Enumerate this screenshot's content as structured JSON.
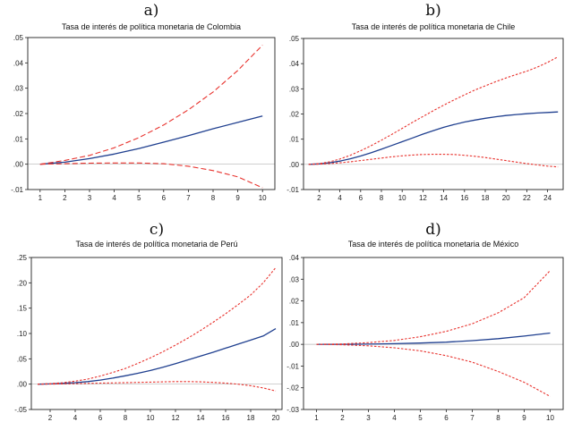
{
  "chart_data": [
    {
      "type": "line",
      "panel_label": "a)",
      "title": "Tasa de interés de política monetaria de Colombia",
      "xlim": [
        0.5,
        10.5
      ],
      "ylim": [
        -0.01,
        0.05
      ],
      "x_ticks": [
        1,
        2,
        3,
        4,
        5,
        6,
        7,
        8,
        9,
        10
      ],
      "y_ticks": [
        -0.01,
        0.0,
        0.01,
        0.02,
        0.03,
        0.04,
        0.05
      ],
      "y_tick_labels": [
        "-.01",
        ".00",
        ".01",
        ".02",
        ".03",
        ".04",
        ".05"
      ],
      "x_points": [
        1,
        2,
        3,
        4,
        5,
        6,
        7,
        8,
        9,
        10
      ],
      "series": [
        {
          "style": "solid",
          "color": "#1f3f8f",
          "values": [
            0.0,
            0.0008,
            0.0022,
            0.004,
            0.0062,
            0.0087,
            0.0113,
            0.014,
            0.0165,
            0.019
          ]
        },
        {
          "style": "dashed",
          "color": "#e8322d",
          "values": [
            0.0,
            0.0015,
            0.0035,
            0.0065,
            0.0105,
            0.0155,
            0.0215,
            0.0285,
            0.037,
            0.047
          ]
        },
        {
          "style": "dashed",
          "color": "#e8322d",
          "values": [
            0.0,
            0.0002,
            0.0004,
            0.0005,
            0.0005,
            0.0002,
            -0.0008,
            -0.0025,
            -0.005,
            -0.0093
          ]
        }
      ]
    },
    {
      "type": "line",
      "panel_label": "b)",
      "title": "Tasa de interés de política monetaria de Chile",
      "xlim": [
        0.5,
        25.5
      ],
      "ylim": [
        -0.01,
        0.05
      ],
      "x_ticks": [
        2,
        4,
        6,
        8,
        10,
        12,
        14,
        16,
        18,
        20,
        22,
        24
      ],
      "y_ticks": [
        -0.01,
        0.0,
        0.01,
        0.02,
        0.03,
        0.04,
        0.05
      ],
      "y_tick_labels": [
        "-.01",
        ".00",
        ".01",
        ".02",
        ".03",
        ".04",
        ".05"
      ],
      "x_points": [
        1,
        2,
        3,
        4,
        5,
        6,
        7,
        8,
        9,
        10,
        11,
        12,
        13,
        14,
        15,
        16,
        17,
        18,
        19,
        20,
        21,
        22,
        23,
        24,
        25
      ],
      "series": [
        {
          "style": "solid",
          "color": "#1f3f8f",
          "values": [
            0.0,
            0.0002,
            0.0006,
            0.0013,
            0.0022,
            0.0033,
            0.0046,
            0.006,
            0.0075,
            0.009,
            0.0105,
            0.012,
            0.0134,
            0.0147,
            0.0158,
            0.0168,
            0.0176,
            0.0183,
            0.0189,
            0.0194,
            0.0198,
            0.0201,
            0.0204,
            0.0206,
            0.0208
          ]
        },
        {
          "style": "dotted",
          "color": "#e8322d",
          "values": [
            0.0,
            0.0003,
            0.001,
            0.0021,
            0.0036,
            0.0054,
            0.0074,
            0.0096,
            0.0119,
            0.0143,
            0.0167,
            0.019,
            0.0213,
            0.0235,
            0.0256,
            0.0276,
            0.0295,
            0.0312,
            0.0328,
            0.0343,
            0.0357,
            0.037,
            0.0386,
            0.0405,
            0.0427
          ]
        },
        {
          "style": "dotted",
          "color": "#e8322d",
          "values": [
            0.0,
            0.0001,
            0.0003,
            0.0006,
            0.001,
            0.0015,
            0.002,
            0.0025,
            0.003,
            0.0034,
            0.0037,
            0.0039,
            0.004,
            0.004,
            0.0039,
            0.0036,
            0.0032,
            0.0027,
            0.0021,
            0.0015,
            0.0009,
            0.0003,
            -0.0002,
            -0.0007,
            -0.001
          ]
        }
      ]
    },
    {
      "type": "line",
      "panel_label": "c)",
      "title": "Tasa de interés de política monetaria de Perú",
      "xlim": [
        0.5,
        20.5
      ],
      "ylim": [
        -0.05,
        0.25
      ],
      "x_ticks": [
        2,
        4,
        6,
        8,
        10,
        12,
        14,
        16,
        18,
        20
      ],
      "y_ticks": [
        -0.05,
        0.0,
        0.05,
        0.1,
        0.15,
        0.2,
        0.25
      ],
      "y_tick_labels": [
        "-.05",
        ".00",
        ".05",
        ".10",
        ".15",
        ".20",
        ".25"
      ],
      "x_points": [
        1,
        2,
        3,
        4,
        5,
        6,
        7,
        8,
        9,
        10,
        11,
        12,
        13,
        14,
        15,
        16,
        17,
        18,
        19,
        20
      ],
      "series": [
        {
          "style": "solid",
          "color": "#1f3f8f",
          "values": [
            0.0,
            0.0005,
            0.0015,
            0.003,
            0.005,
            0.008,
            0.012,
            0.0165,
            0.0215,
            0.027,
            0.0335,
            0.0405,
            0.048,
            0.0555,
            0.063,
            0.071,
            0.079,
            0.087,
            0.095,
            0.1095
          ]
        },
        {
          "style": "dotted",
          "color": "#e8322d",
          "values": [
            0.0,
            0.001,
            0.003,
            0.006,
            0.01,
            0.016,
            0.023,
            0.031,
            0.041,
            0.052,
            0.064,
            0.077,
            0.091,
            0.106,
            0.122,
            0.139,
            0.157,
            0.176,
            0.2,
            0.23
          ]
        },
        {
          "style": "dotted",
          "color": "#e8322d",
          "values": [
            0.0,
            0.0002,
            0.0005,
            0.001,
            0.0015,
            0.002,
            0.0025,
            0.003,
            0.0035,
            0.004,
            0.0045,
            0.005,
            0.005,
            0.0045,
            0.0035,
            0.002,
            0.0,
            -0.003,
            -0.0075,
            -0.0135
          ]
        }
      ]
    },
    {
      "type": "line",
      "panel_label": "d)",
      "title": "Tasa de interés de política monetaria de México",
      "xlim": [
        0.5,
        10.5
      ],
      "ylim": [
        -0.03,
        0.04
      ],
      "x_ticks": [
        1,
        2,
        3,
        4,
        5,
        6,
        7,
        8,
        9,
        10
      ],
      "y_ticks": [
        -0.03,
        -0.02,
        -0.01,
        0.0,
        0.01,
        0.02,
        0.03,
        0.04
      ],
      "y_tick_labels": [
        "-.03",
        "-.02",
        "-.01",
        ".00",
        ".01",
        ".02",
        ".03",
        ".04"
      ],
      "x_points": [
        1,
        2,
        3,
        4,
        5,
        6,
        7,
        8,
        9,
        10
      ],
      "series": [
        {
          "style": "solid",
          "color": "#1f3f8f",
          "values": [
            0.0,
            0.0,
            0.0001,
            0.0003,
            0.0006,
            0.001,
            0.0017,
            0.0026,
            0.0038,
            0.0052
          ]
        },
        {
          "style": "dotted",
          "color": "#e8322d",
          "values": [
            0.0,
            0.0002,
            0.0008,
            0.0018,
            0.0035,
            0.006,
            0.0095,
            0.0145,
            0.0215,
            0.034
          ]
        },
        {
          "style": "dotted",
          "color": "#e8322d",
          "values": [
            0.0,
            -0.0002,
            -0.0007,
            -0.0016,
            -0.003,
            -0.0052,
            -0.0082,
            -0.0125,
            -0.0175,
            -0.024
          ]
        }
      ]
    }
  ]
}
